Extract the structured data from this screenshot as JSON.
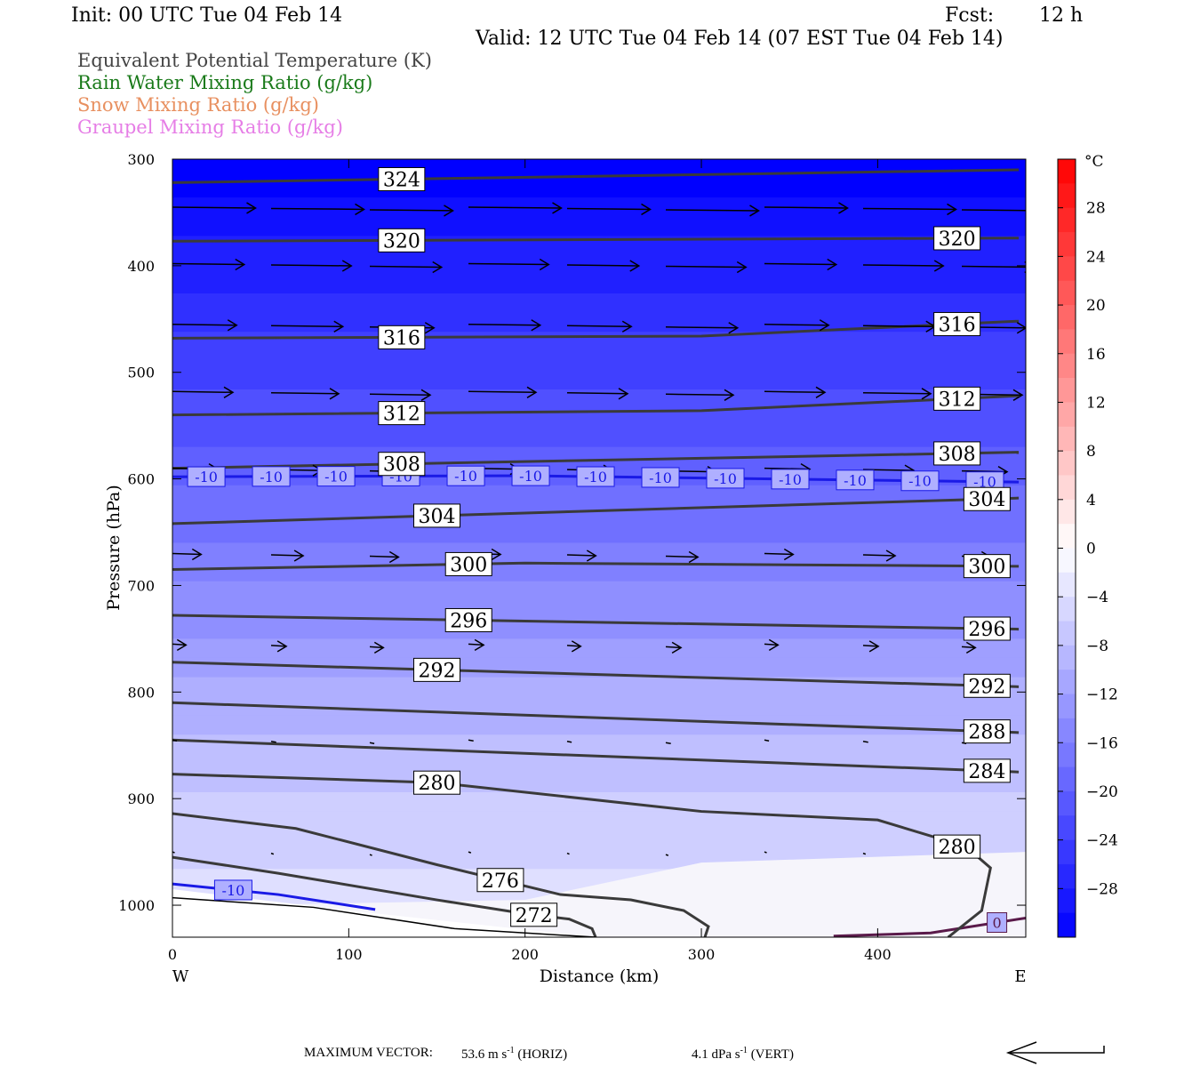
{
  "header": {
    "init": "Init: 00 UTC Tue 04 Feb 14",
    "fcst_label": "Fcst:",
    "fcst_value": "12 h",
    "valid": "Valid: 12 UTC Tue 04 Feb 14 (07 EST Tue 04 Feb 14)"
  },
  "legend_lines": [
    {
      "text": "Equivalent Potential Temperature (K)",
      "color": "#444444"
    },
    {
      "text": "Rain Water Mixing Ratio (g/kg)",
      "color": "#1a7a1a"
    },
    {
      "text": "Snow Mixing Ratio (g/kg)",
      "color": "#e89060"
    },
    {
      "text": "Graupel Mixing Ratio (g/kg)",
      "color": "#e67ee6"
    }
  ],
  "chart_data": {
    "type": "contour-cross-section",
    "xlabel": "Distance (km)",
    "ylabel": "Pressure (hPa)",
    "xlim": [
      0,
      484
    ],
    "ylim": [
      1030,
      300
    ],
    "x_ticks": [
      0,
      100,
      200,
      300,
      400
    ],
    "y_ticks": [
      300,
      400,
      500,
      600,
      700,
      800,
      900,
      1000
    ],
    "x_end_labels": {
      "left": "W",
      "right": "E"
    },
    "colorbar": {
      "unit": "°C",
      "ticks": [
        28,
        24,
        20,
        16,
        12,
        8,
        4,
        0,
        -4,
        -8,
        -12,
        -16,
        -20,
        -24,
        -28
      ],
      "range": [
        -32,
        32
      ]
    },
    "theta_e_contours": [
      {
        "label": "324",
        "points": [
          [
            0,
            322
          ],
          [
            480,
            310
          ]
        ]
      },
      {
        "label": "320",
        "points": [
          [
            0,
            377
          ],
          [
            480,
            374
          ]
        ]
      },
      {
        "label": "316",
        "points": [
          [
            0,
            468
          ],
          [
            300,
            466
          ],
          [
            480,
            452
          ]
        ]
      },
      {
        "label": "312",
        "points": [
          [
            0,
            540
          ],
          [
            300,
            536
          ],
          [
            480,
            522
          ]
        ]
      },
      {
        "label": "308",
        "points": [
          [
            0,
            590
          ],
          [
            480,
            575
          ]
        ]
      },
      {
        "label": "304",
        "points": [
          [
            0,
            642
          ],
          [
            480,
            618
          ]
        ]
      },
      {
        "label": "300",
        "points": [
          [
            0,
            685
          ],
          [
            200,
            679
          ],
          [
            480,
            682
          ]
        ]
      },
      {
        "label": "296",
        "points": [
          [
            0,
            728
          ],
          [
            480,
            741
          ]
        ]
      },
      {
        "label": "292",
        "points": [
          [
            0,
            772
          ],
          [
            480,
            795
          ]
        ]
      },
      {
        "label": "288",
        "points": [
          [
            0,
            810
          ],
          [
            480,
            838
          ]
        ]
      },
      {
        "label": "284",
        "points": [
          [
            0,
            845
          ],
          [
            480,
            875
          ]
        ]
      },
      {
        "label": "280",
        "points": [
          [
            0,
            877
          ],
          [
            150,
            885
          ],
          [
            300,
            912
          ],
          [
            400,
            920
          ],
          [
            450,
            945
          ],
          [
            464,
            965
          ],
          [
            459,
            1005
          ],
          [
            440,
            1030
          ]
        ]
      },
      {
        "label": "276",
        "points": [
          [
            0,
            914
          ],
          [
            70,
            928
          ],
          [
            150,
            962
          ],
          [
            220,
            990
          ],
          [
            260,
            995
          ],
          [
            290,
            1005
          ],
          [
            304,
            1020
          ],
          [
            302,
            1030
          ]
        ]
      },
      {
        "label": "272",
        "points": [
          [
            0,
            955
          ],
          [
            60,
            970
          ],
          [
            150,
            995
          ],
          [
            200,
            1008
          ],
          [
            225,
            1013
          ],
          [
            238,
            1022
          ],
          [
            240,
            1030
          ]
        ]
      }
    ],
    "temperature_isotherms": [
      {
        "label": "-10",
        "points": [
          [
            0,
            598
          ],
          [
            200,
            597
          ],
          [
            480,
            603
          ]
        ]
      },
      {
        "label": "-10",
        "points": [
          [
            0,
            980
          ],
          [
            60,
            990
          ],
          [
            115,
            1004
          ]
        ]
      },
      {
        "label": "0",
        "points": [
          [
            375,
            1029
          ],
          [
            430,
            1026
          ],
          [
            484,
            1012
          ]
        ]
      }
    ],
    "wind_vector_scale": {
      "prefix": "MAXIMUM VECTOR:",
      "horiz_value": "53.6",
      "horiz_unit": "m s",
      "horiz_sup": "-1",
      "horiz_suffix": "(HORIZ)",
      "vert_value": "4.1",
      "vert_unit": "dPa s",
      "vert_sup": "-1",
      "vert_suffix": "(VERT)"
    }
  }
}
